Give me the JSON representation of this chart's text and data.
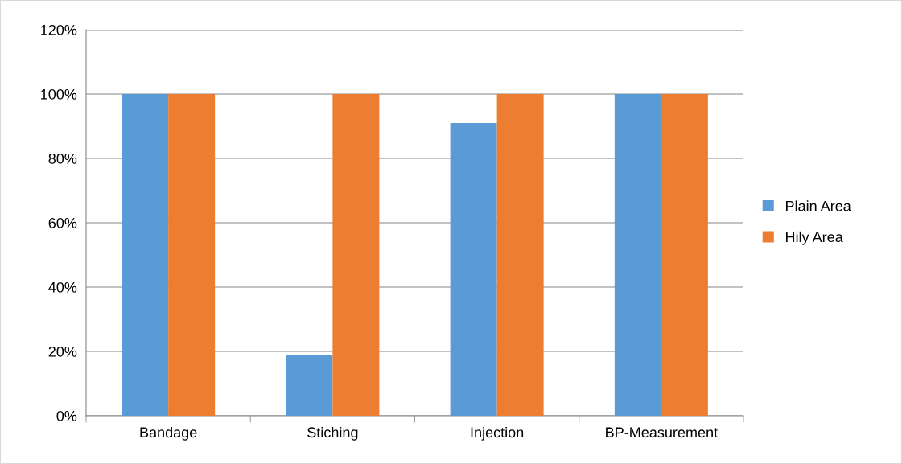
{
  "chart_data": {
    "type": "bar",
    "categories": [
      "Bandage",
      "Stiching",
      "Injection",
      "BP-Measurement"
    ],
    "series": [
      {
        "name": "Plain Area",
        "color": "#5b9bd5",
        "values": [
          100,
          19,
          91,
          100
        ]
      },
      {
        "name": "Hily Area",
        "color": "#ed7d31",
        "values": [
          100,
          100,
          100,
          100
        ]
      }
    ],
    "ylim": [
      0,
      120
    ],
    "yticks": [
      {
        "value": 0,
        "label": "0%"
      },
      {
        "value": 20,
        "label": "20%"
      },
      {
        "value": 40,
        "label": "40%"
      },
      {
        "value": 60,
        "label": "60%"
      },
      {
        "value": 80,
        "label": "80%"
      },
      {
        "value": 100,
        "label": "100%"
      },
      {
        "value": 120,
        "label": "120%"
      }
    ],
    "grid": "y",
    "legend": "right"
  }
}
